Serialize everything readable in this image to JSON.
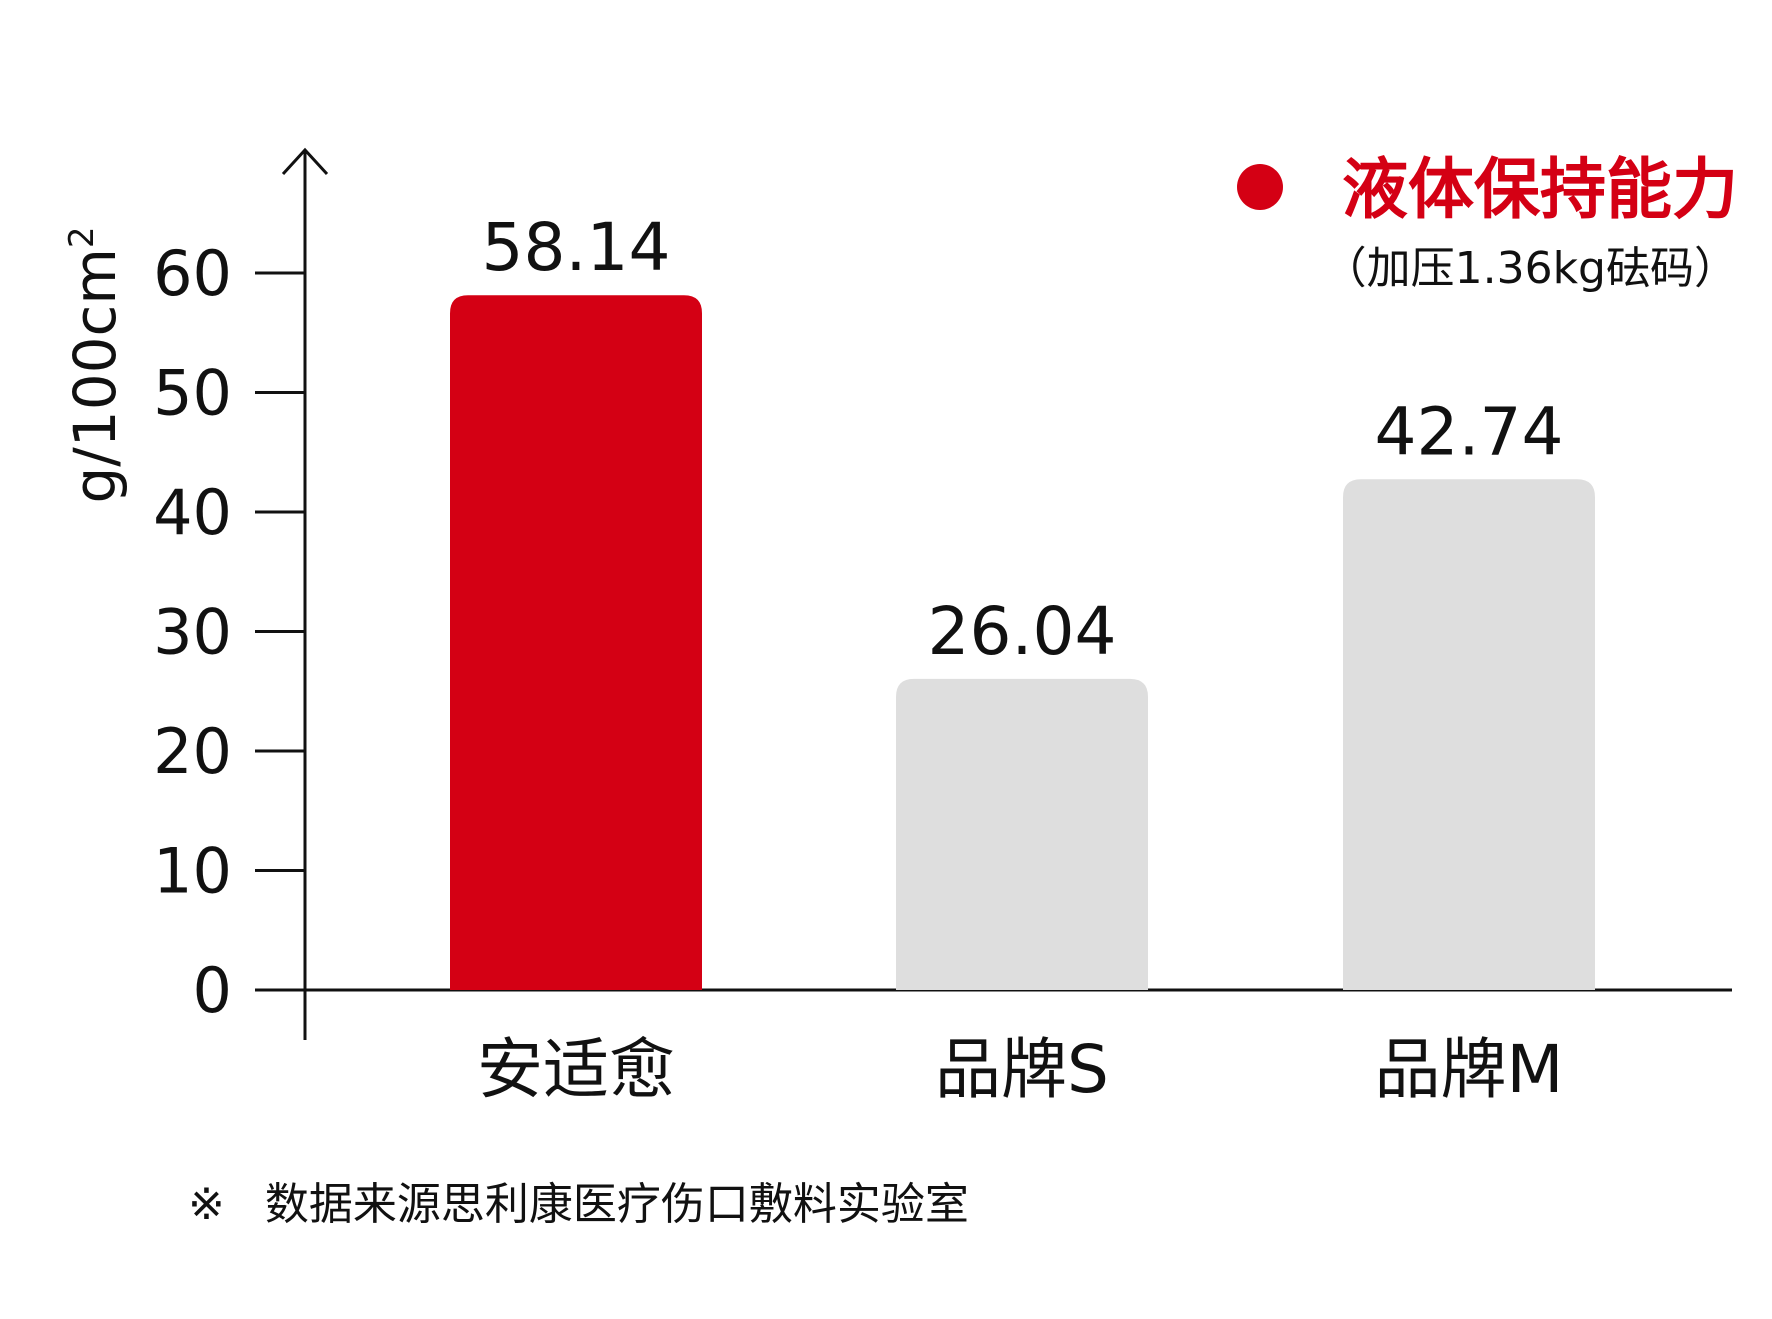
{
  "chart_data": {
    "type": "bar",
    "title": "",
    "ylabel": "g/100cm",
    "ylabel_superscript": "2",
    "xlabel": "",
    "ylim": [
      0,
      60
    ],
    "yticks": [
      "0",
      "10",
      "20",
      "30",
      "40",
      "50",
      "60"
    ],
    "categories": [
      "安适愈",
      "品牌S",
      "品牌M"
    ],
    "values": [
      58.14,
      26.04,
      42.74
    ],
    "value_labels": [
      "58.14",
      "26.04",
      "42.74"
    ],
    "bar_colors": [
      "#d40014",
      "#dedede",
      "#dedede"
    ],
    "legend": {
      "position": "top-right",
      "marker_color": "#d40014",
      "label": "液体保持能力",
      "sublabel": "（加压1.36kg砝码）"
    },
    "grid": false
  },
  "footnote": {
    "mark": "※",
    "text": "数据来源思利康医疗伤口敷料实验室"
  },
  "colors": {
    "axis": "#111111",
    "text": "#111111",
    "accent": "#d40014",
    "bar_gray": "#dedede"
  }
}
